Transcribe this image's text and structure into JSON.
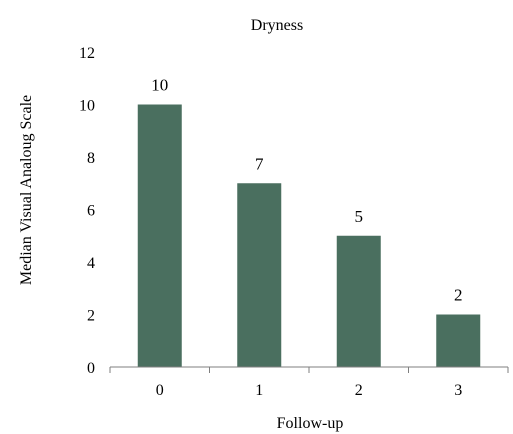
{
  "chart_data": {
    "type": "bar",
    "title": "Dryness",
    "xlabel": "Follow-up",
    "ylabel": "Median Visual Analoug Scale",
    "categories": [
      "0",
      "1",
      "2",
      "3"
    ],
    "values": [
      10,
      7,
      5,
      2
    ],
    "data_labels": [
      "10",
      "7",
      "5",
      "2"
    ],
    "ylim": [
      0,
      12
    ],
    "yticks": [
      "0",
      "2",
      "4",
      "6",
      "8",
      "10",
      "12"
    ],
    "grid": false,
    "legend": "none",
    "bar_color": "#4a6f5f"
  }
}
